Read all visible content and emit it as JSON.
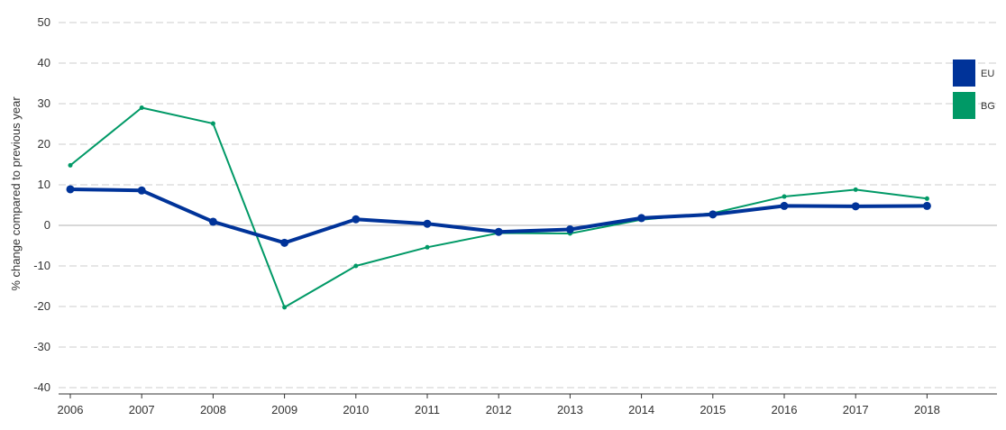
{
  "chart_data": {
    "type": "line",
    "title": "",
    "xlabel": "",
    "ylabel": "% change compared to previous year",
    "x": [
      "2006",
      "2007",
      "2008",
      "2009",
      "2010",
      "2011",
      "2012",
      "2013",
      "2014",
      "2015",
      "2016",
      "2017",
      "2018"
    ],
    "y_ticks": [
      "50",
      "40",
      "30",
      "20",
      "10",
      "0",
      "-10",
      "-20",
      "-30",
      "-40"
    ],
    "ylim": [
      -42,
      50
    ],
    "grid": "horizontal dashed",
    "legend_position": "right",
    "series": [
      {
        "name": "EU",
        "color": "#003399",
        "values": [
          8.9,
          8.6,
          0.9,
          -4.3,
          1.5,
          0.4,
          -1.6,
          -1.0,
          1.8,
          2.7,
          4.8,
          4.7,
          4.8
        ]
      },
      {
        "name": "BG",
        "color": "#009966",
        "values": [
          14.8,
          29.0,
          25.1,
          -20.2,
          -10.0,
          -5.4,
          -1.9,
          -2.0,
          1.4,
          3.0,
          7.1,
          8.8,
          6.6
        ]
      }
    ]
  }
}
